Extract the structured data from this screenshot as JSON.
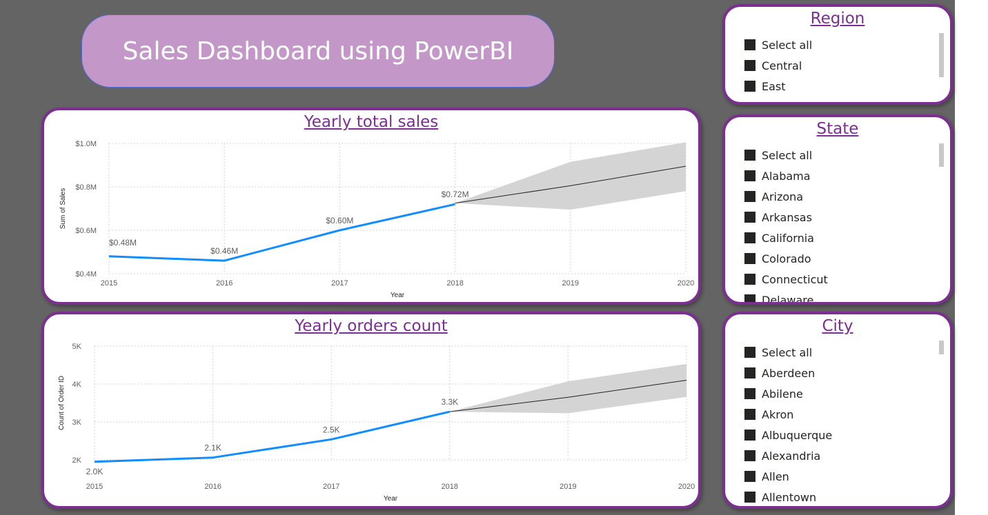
{
  "header": {
    "title": "Sales Dashboard using PowerBI"
  },
  "colors": {
    "accent": "#7b2f91",
    "line": "#118dff",
    "forecast_band": "#d4d4d4",
    "title_bg": "#c398c9"
  },
  "chart_data": [
    {
      "type": "line",
      "title": "Yearly total sales",
      "xlabel": "Year",
      "ylabel": "Sum of Sales",
      "x": [
        2015,
        2016,
        2017,
        2018
      ],
      "y": [
        0.48,
        0.46,
        0.6,
        0.72
      ],
      "data_labels": [
        "$0.48M",
        "$0.46M",
        "$0.60M",
        "$0.72M"
      ],
      "forecast": {
        "x": [
          2018,
          2019,
          2020
        ],
        "y": [
          0.725,
          0.805,
          0.895
        ],
        "upper": [
          0.725,
          0.915,
          1.005
        ],
        "lower": [
          0.725,
          0.695,
          0.78
        ]
      },
      "xticks": [
        "2015",
        "2016",
        "2017",
        "2018",
        "2019",
        "2020"
      ],
      "yticks": [
        0.4,
        0.6,
        0.8,
        1.0
      ],
      "ytick_labels": [
        "$0.4M",
        "$0.6M",
        "$0.8M",
        "$1.0M"
      ],
      "ylim": [
        0.4,
        1.0
      ],
      "xlim": [
        2015,
        2020
      ],
      "grid": true
    },
    {
      "type": "line",
      "title": "Yearly orders count",
      "xlabel": "Year",
      "ylabel": "Count of Order ID",
      "x": [
        2015,
        2016,
        2017,
        2018
      ],
      "y": [
        1.95,
        2.06,
        2.54,
        3.27
      ],
      "data_labels": [
        "2.0K",
        "2.1K",
        "2.5K",
        "3.3K"
      ],
      "forecast": {
        "x": [
          2018,
          2019,
          2020
        ],
        "y": [
          3.27,
          3.65,
          4.1
        ],
        "upper": [
          3.27,
          4.07,
          4.53
        ],
        "lower": [
          3.27,
          3.23,
          3.66
        ]
      },
      "xticks": [
        "2015",
        "2016",
        "2017",
        "2018",
        "2019",
        "2020"
      ],
      "yticks": [
        2,
        3,
        4,
        5
      ],
      "ytick_labels": [
        "2K",
        "3K",
        "4K",
        "5K"
      ],
      "ylim": [
        2,
        5
      ],
      "xlim": [
        2015,
        2020
      ],
      "grid": true
    }
  ],
  "slicers": {
    "region": {
      "title": "Region",
      "items": [
        "Select all",
        "Central",
        "East"
      ]
    },
    "state": {
      "title": "State",
      "items": [
        "Select all",
        "Alabama",
        "Arizona",
        "Arkansas",
        "California",
        "Colorado",
        "Connecticut",
        "Delaware"
      ]
    },
    "city": {
      "title": "City",
      "items": [
        "Select all",
        "Aberdeen",
        "Abilene",
        "Akron",
        "Albuquerque",
        "Alexandria",
        "Allen",
        "Allentown"
      ]
    }
  }
}
